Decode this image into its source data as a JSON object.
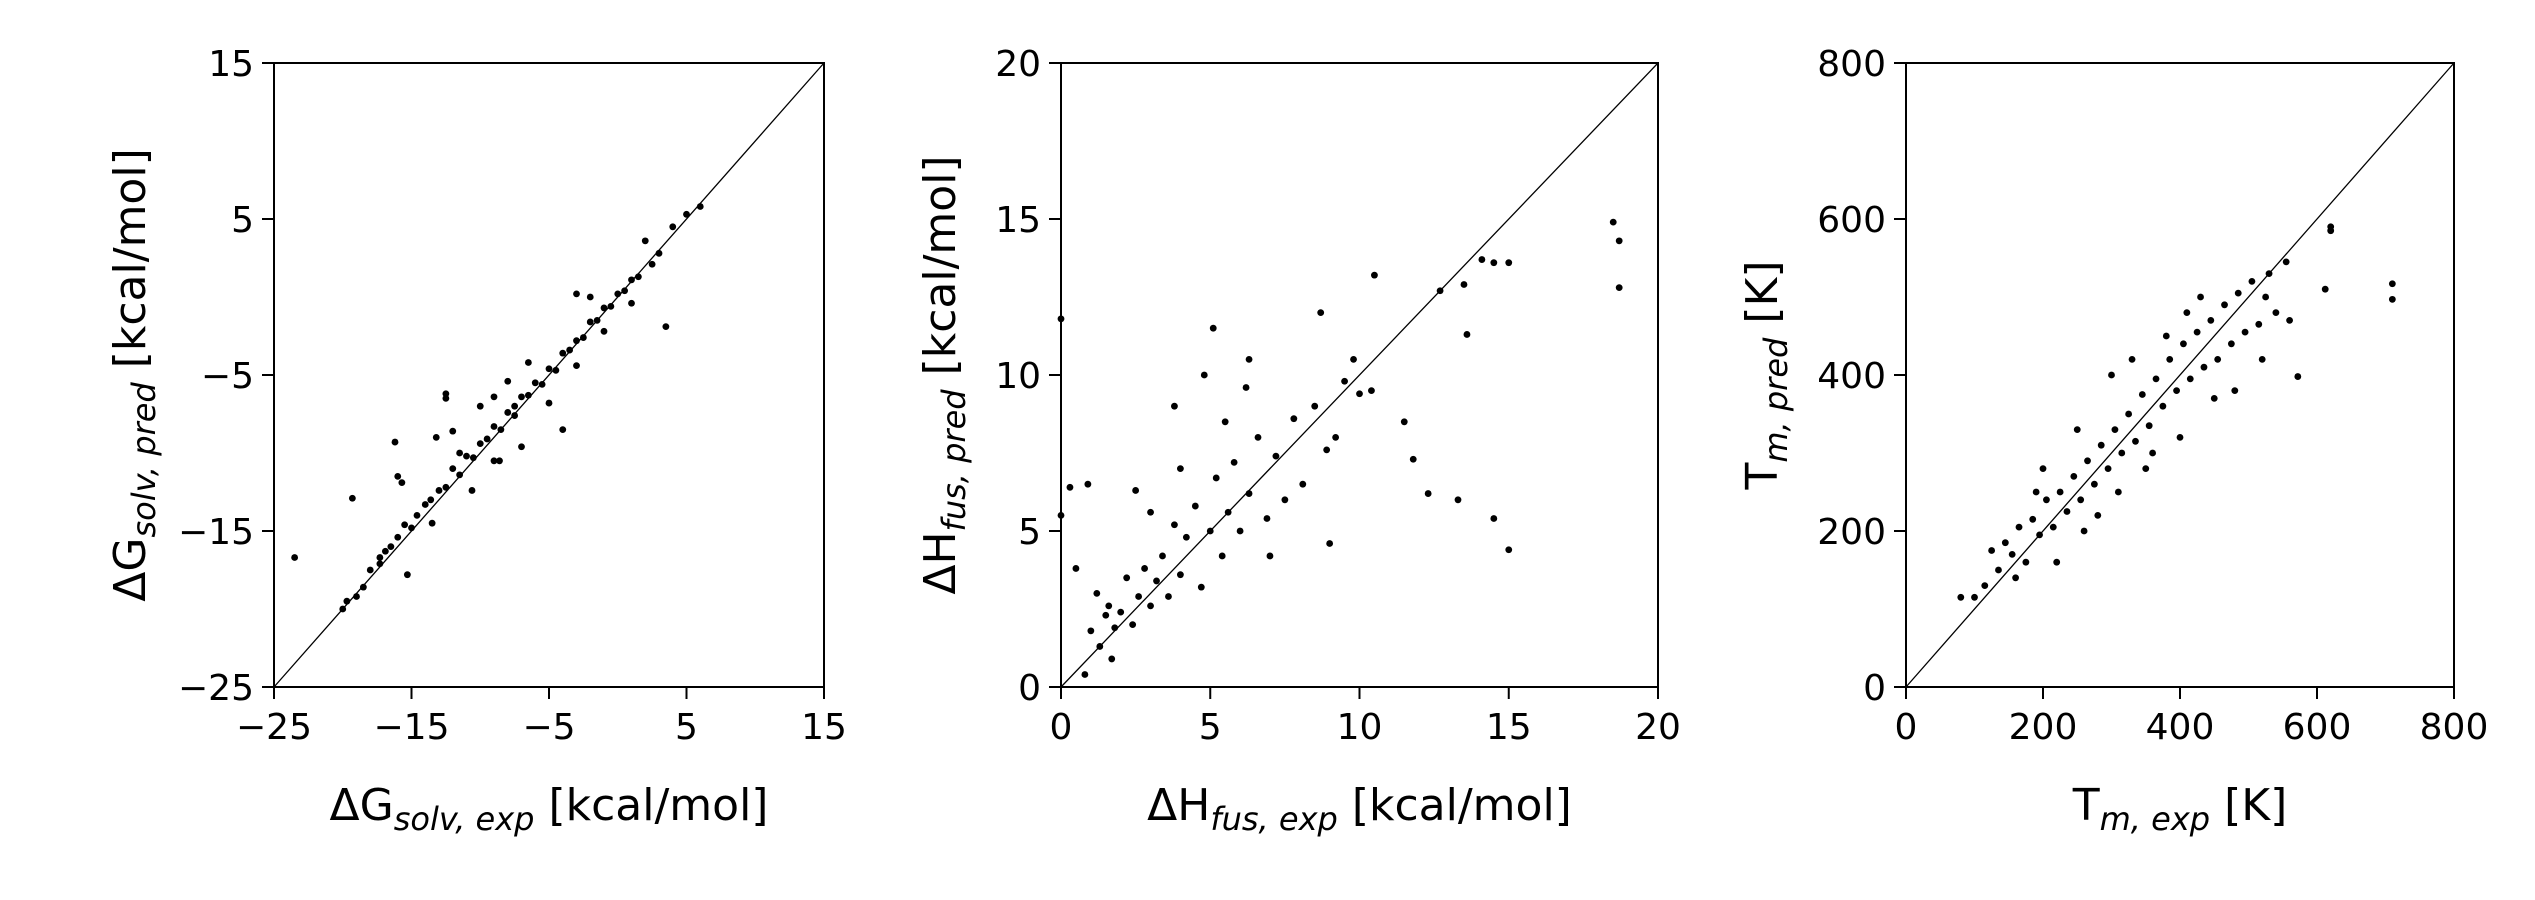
{
  "chart_data": [
    {
      "type": "scatter",
      "title": "",
      "xlabel": {
        "main": "ΔG",
        "sub": "solv, exp",
        "unit": " [kcal/mol]"
      },
      "ylabel": {
        "main": "ΔG",
        "sub": "solv, pred",
        "unit": " [kcal/mol]"
      },
      "xlim": [
        -25,
        15
      ],
      "ylim": [
        -25,
        15
      ],
      "xticks": [
        -25,
        -15,
        -5,
        5,
        15
      ],
      "yticks": [
        -25,
        -15,
        -5,
        5,
        15
      ],
      "xtick_labels": [
        "−25",
        "−15",
        "−5",
        "5",
        "15"
      ],
      "ytick_labels": [
        "−25",
        "−15",
        "−5",
        "5",
        "15"
      ],
      "reference_line": "y=x",
      "color": "#000000",
      "points": [
        [
          -23.5,
          -16.7
        ],
        [
          -19.3,
          -12.9
        ],
        [
          -16.2,
          -9.3
        ],
        [
          -16.0,
          -11.5
        ],
        [
          -15.7,
          -11.9
        ],
        [
          -12.5,
          -6.2
        ],
        [
          -12.5,
          -6.5
        ],
        [
          -3.0,
          0.2
        ],
        [
          3.5,
          -1.9
        ],
        [
          -7.5,
          -7.0
        ],
        [
          -4.0,
          -8.5
        ],
        [
          -15.3,
          -17.8
        ],
        [
          2.0,
          3.6
        ],
        [
          -20.0,
          -20.0
        ],
        [
          -19.7,
          -19.5
        ],
        [
          -19.0,
          -19.2
        ],
        [
          -18.5,
          -18.6
        ],
        [
          -18.0,
          -17.5
        ],
        [
          -17.3,
          -17.1
        ],
        [
          -16.9,
          -16.3
        ],
        [
          -16.5,
          -16.0
        ],
        [
          -16.0,
          -15.4
        ],
        [
          -15.5,
          -14.6
        ],
        [
          -15.0,
          -14.8
        ],
        [
          -14.6,
          -14.0
        ],
        [
          -14.0,
          -13.3
        ],
        [
          -13.6,
          -13.0
        ],
        [
          -13.0,
          -12.4
        ],
        [
          -12.5,
          -12.2
        ],
        [
          -12.0,
          -11.0
        ],
        [
          -11.5,
          -11.4
        ],
        [
          -11.0,
          -10.2
        ],
        [
          -10.5,
          -10.3
        ],
        [
          -10.0,
          -9.4
        ],
        [
          -9.5,
          -9.1
        ],
        [
          -9.0,
          -8.3
        ],
        [
          -8.5,
          -8.5
        ],
        [
          -8.0,
          -7.4
        ],
        [
          -7.5,
          -7.6
        ],
        [
          -7.0,
          -6.4
        ],
        [
          -6.5,
          -6.3
        ],
        [
          -6.0,
          -5.5
        ],
        [
          -5.5,
          -5.6
        ],
        [
          -5.0,
          -4.6
        ],
        [
          -4.5,
          -4.7
        ],
        [
          -4.0,
          -3.6
        ],
        [
          -3.5,
          -3.4
        ],
        [
          -3.0,
          -2.8
        ],
        [
          -2.5,
          -2.6
        ],
        [
          -2.0,
          -1.6
        ],
        [
          -1.5,
          -1.5
        ],
        [
          -1.0,
          -0.7
        ],
        [
          -0.5,
          -0.6
        ],
        [
          0.0,
          0.2
        ],
        [
          0.5,
          0.4
        ],
        [
          1.0,
          1.1
        ],
        [
          1.5,
          1.3
        ],
        [
          2.5,
          2.1
        ],
        [
          3.0,
          2.8
        ],
        [
          4.0,
          4.5
        ],
        [
          5.0,
          5.3
        ],
        [
          6.0,
          5.8
        ],
        [
          -13.2,
          -9.0
        ],
        [
          -12.0,
          -8.6
        ],
        [
          -10.0,
          -7.0
        ],
        [
          -9.0,
          -6.4
        ],
        [
          -8.0,
          -5.4
        ],
        [
          -10.6,
          -12.4
        ],
        [
          -9.0,
          -10.5
        ],
        [
          -7.0,
          -9.6
        ],
        [
          -5.0,
          -6.8
        ],
        [
          -3.0,
          -4.4
        ],
        [
          -1.0,
          -2.2
        ],
        [
          1.0,
          -0.4
        ],
        [
          -11.5,
          -10.0
        ],
        [
          -6.5,
          -4.2
        ],
        [
          -2.0,
          0.0
        ],
        [
          -13.5,
          -14.5
        ],
        [
          -17.3,
          -16.7
        ],
        [
          -8.6,
          -10.5
        ]
      ]
    },
    {
      "type": "scatter",
      "title": "",
      "xlabel": {
        "main": "ΔH",
        "sub": "fus, exp",
        "unit": " [kcal/mol]"
      },
      "ylabel": {
        "main": "ΔH",
        "sub": "fus, pred",
        "unit": " [kcal/mol]"
      },
      "xlim": [
        0,
        20
      ],
      "ylim": [
        0,
        20
      ],
      "xticks": [
        0,
        5,
        10,
        15,
        20
      ],
      "yticks": [
        0,
        5,
        10,
        15,
        20
      ],
      "xtick_labels": [
        "0",
        "5",
        "10",
        "15",
        "20"
      ],
      "ytick_labels": [
        "0",
        "5",
        "10",
        "15",
        "20"
      ],
      "reference_line": "y=x",
      "color": "#000000",
      "points": [
        [
          0.0,
          11.8
        ],
        [
          0.0,
          5.5
        ],
        [
          18.5,
          14.9
        ],
        [
          18.7,
          14.3
        ],
        [
          18.7,
          12.8
        ],
        [
          15.0,
          4.4
        ],
        [
          14.5,
          5.4
        ],
        [
          13.3,
          6.0
        ],
        [
          12.3,
          6.2
        ],
        [
          14.1,
          13.7
        ],
        [
          14.5,
          13.6
        ],
        [
          15.0,
          13.6
        ],
        [
          13.5,
          12.9
        ],
        [
          13.6,
          11.3
        ],
        [
          10.5,
          13.2
        ],
        [
          12.7,
          12.7
        ],
        [
          8.7,
          12.0
        ],
        [
          5.1,
          11.5
        ],
        [
          3.8,
          9.0
        ],
        [
          9.8,
          10.5
        ],
        [
          0.3,
          6.4
        ],
        [
          0.5,
          3.8
        ],
        [
          0.9,
          6.5
        ],
        [
          1.0,
          1.8
        ],
        [
          1.2,
          3.0
        ],
        [
          1.3,
          1.3
        ],
        [
          1.5,
          2.3
        ],
        [
          1.6,
          2.6
        ],
        [
          1.8,
          1.9
        ],
        [
          2.0,
          2.4
        ],
        [
          2.2,
          3.5
        ],
        [
          2.4,
          2.0
        ],
        [
          2.6,
          2.9
        ],
        [
          2.8,
          3.8
        ],
        [
          3.0,
          2.6
        ],
        [
          3.2,
          3.4
        ],
        [
          3.4,
          4.2
        ],
        [
          3.6,
          2.9
        ],
        [
          3.8,
          5.2
        ],
        [
          4.0,
          3.6
        ],
        [
          4.2,
          4.8
        ],
        [
          4.5,
          5.8
        ],
        [
          4.7,
          3.2
        ],
        [
          5.0,
          5.0
        ],
        [
          5.2,
          6.7
        ],
        [
          5.4,
          4.2
        ],
        [
          5.6,
          5.6
        ],
        [
          5.8,
          7.2
        ],
        [
          6.0,
          5.0
        ],
        [
          6.3,
          6.2
        ],
        [
          6.6,
          8.0
        ],
        [
          6.9,
          5.4
        ],
        [
          7.2,
          7.4
        ],
        [
          7.5,
          6.0
        ],
        [
          7.8,
          8.6
        ],
        [
          8.1,
          6.5
        ],
        [
          8.5,
          9.0
        ],
        [
          8.9,
          7.6
        ],
        [
          9.2,
          8.0
        ],
        [
          9.5,
          9.8
        ],
        [
          10.0,
          9.4
        ],
        [
          10.4,
          9.5
        ],
        [
          11.5,
          8.5
        ],
        [
          11.8,
          7.3
        ],
        [
          2.5,
          6.3
        ],
        [
          3.0,
          5.6
        ],
        [
          4.0,
          7.0
        ],
        [
          5.5,
          8.5
        ],
        [
          6.3,
          10.5
        ],
        [
          7.0,
          4.2
        ],
        [
          1.7,
          0.9
        ],
        [
          0.8,
          0.4
        ],
        [
          9.0,
          4.6
        ],
        [
          6.2,
          9.6
        ],
        [
          4.8,
          10.0
        ]
      ]
    },
    {
      "type": "scatter",
      "title": "",
      "xlabel": {
        "main": "T",
        "sub": "m, exp",
        "unit": " [K]"
      },
      "ylabel": {
        "main": "T",
        "sub": "m, pred",
        "unit": " [K]"
      },
      "xlim": [
        0,
        800
      ],
      "ylim": [
        0,
        800
      ],
      "xticks": [
        0,
        200,
        400,
        600,
        800
      ],
      "yticks": [
        0,
        200,
        400,
        600,
        800
      ],
      "xtick_labels": [
        "0",
        "200",
        "400",
        "600",
        "800"
      ],
      "ytick_labels": [
        "0",
        "200",
        "400",
        "600",
        "800"
      ],
      "reference_line": "y=x",
      "color": "#000000",
      "points": [
        [
          710,
          517
        ],
        [
          710,
          497
        ],
        [
          620,
          590
        ],
        [
          620,
          585
        ],
        [
          612,
          510
        ],
        [
          572,
          398
        ],
        [
          530,
          530
        ],
        [
          80,
          115
        ],
        [
          100,
          115
        ],
        [
          115,
          130
        ],
        [
          125,
          175
        ],
        [
          135,
          150
        ],
        [
          145,
          185
        ],
        [
          155,
          170
        ],
        [
          165,
          205
        ],
        [
          175,
          160
        ],
        [
          185,
          215
        ],
        [
          195,
          195
        ],
        [
          205,
          240
        ],
        [
          215,
          205
        ],
        [
          225,
          250
        ],
        [
          235,
          225
        ],
        [
          245,
          270
        ],
        [
          255,
          240
        ],
        [
          265,
          290
        ],
        [
          275,
          260
        ],
        [
          285,
          310
        ],
        [
          295,
          280
        ],
        [
          305,
          330
        ],
        [
          315,
          300
        ],
        [
          325,
          350
        ],
        [
          335,
          315
        ],
        [
          345,
          375
        ],
        [
          355,
          335
        ],
        [
          365,
          395
        ],
        [
          375,
          360
        ],
        [
          385,
          420
        ],
        [
          395,
          380
        ],
        [
          405,
          440
        ],
        [
          415,
          395
        ],
        [
          425,
          455
        ],
        [
          435,
          410
        ],
        [
          445,
          470
        ],
        [
          455,
          420
        ],
        [
          465,
          490
        ],
        [
          475,
          440
        ],
        [
          485,
          505
        ],
        [
          495,
          455
        ],
        [
          505,
          520
        ],
        [
          515,
          465
        ],
        [
          525,
          500
        ],
        [
          540,
          480
        ],
        [
          555,
          545
        ],
        [
          560,
          470
        ],
        [
          300,
          400
        ],
        [
          330,
          420
        ],
        [
          250,
          330
        ],
        [
          200,
          280
        ],
        [
          350,
          280
        ],
        [
          400,
          320
        ],
        [
          450,
          370
        ],
        [
          280,
          220
        ],
        [
          220,
          160
        ],
        [
          380,
          450
        ],
        [
          430,
          500
        ],
        [
          480,
          380
        ],
        [
          520,
          420
        ],
        [
          260,
          200
        ],
        [
          310,
          250
        ],
        [
          360,
          300
        ],
        [
          410,
          480
        ],
        [
          160,
          140
        ],
        [
          190,
          250
        ]
      ]
    }
  ]
}
